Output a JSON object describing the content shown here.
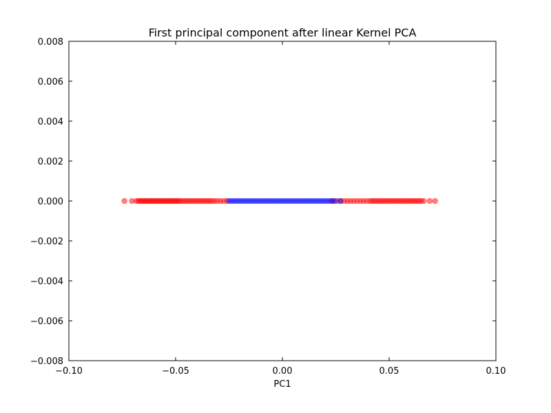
{
  "chart_data": {
    "type": "scatter",
    "title": "First principal component after linear Kernel PCA",
    "xlabel": "PC1",
    "ylabel": "",
    "xlim": [
      -0.1,
      0.1
    ],
    "ylim": [
      -0.008,
      0.008
    ],
    "grid": false,
    "legend": "none",
    "x_ticks": [
      -0.1,
      -0.05,
      0.0,
      0.05,
      0.1
    ],
    "x_tick_labels": [
      "−0.10",
      "−0.05",
      "0.00",
      "0.05",
      "0.10"
    ],
    "y_ticks": [
      0.008,
      0.006,
      0.004,
      0.002,
      0.0,
      -0.002,
      -0.004,
      -0.006,
      -0.008
    ],
    "y_tick_labels": [
      "0.008",
      "0.006",
      "0.004",
      "0.002",
      "0.000",
      "−0.002",
      "−0.004",
      "−0.006",
      "−0.008"
    ],
    "series": [
      {
        "color": "#ff0000",
        "alpha": 0.5,
        "y": 0.0,
        "x": [
          -0.074,
          -0.0705,
          -0.0685,
          -0.0675,
          -0.0668,
          -0.066,
          -0.0652,
          -0.0645,
          -0.0638,
          -0.063,
          -0.0622,
          -0.0615,
          -0.0608,
          -0.06,
          -0.0592,
          -0.0585,
          -0.0578,
          -0.057,
          -0.0562,
          -0.0555,
          -0.0548,
          -0.054,
          -0.0532,
          -0.0525,
          -0.0518,
          -0.051,
          -0.0502,
          -0.0495,
          -0.0488,
          -0.048,
          -0.047,
          -0.046,
          -0.045,
          -0.044,
          -0.043,
          -0.042,
          -0.041,
          -0.04,
          -0.039,
          -0.038,
          -0.037,
          -0.036,
          -0.035,
          -0.034,
          -0.033,
          -0.0318,
          -0.0305,
          -0.029,
          -0.0275,
          -0.026,
          0.0235,
          0.0255,
          0.0275,
          0.029,
          0.0305,
          0.032,
          0.0335,
          0.035,
          0.0365,
          0.038,
          0.0395,
          0.041,
          0.042,
          0.043,
          0.044,
          0.045,
          0.046,
          0.047,
          0.048,
          0.049,
          0.05,
          0.051,
          0.052,
          0.053,
          0.054,
          0.055,
          0.056,
          0.057,
          0.058,
          0.059,
          0.06,
          0.061,
          0.062,
          0.063,
          0.064,
          0.065,
          0.0662,
          0.069,
          0.0715
        ]
      },
      {
        "color": "#0000ff",
        "alpha": 0.5,
        "y": 0.0,
        "x": [
          -0.025,
          -0.0238,
          -0.0226,
          -0.0214,
          -0.0202,
          -0.019,
          -0.0178,
          -0.0166,
          -0.0154,
          -0.0142,
          -0.013,
          -0.0118,
          -0.0106,
          -0.0094,
          -0.0082,
          -0.007,
          -0.0058,
          -0.0046,
          -0.0034,
          -0.0022,
          -0.001,
          0.0002,
          0.0014,
          0.0026,
          0.0038,
          0.005,
          0.0062,
          0.0074,
          0.0086,
          0.0098,
          0.011,
          0.0122,
          0.0134,
          0.0146,
          0.0158,
          0.017,
          0.0182,
          0.0194,
          0.0206,
          0.0218,
          0.023,
          0.0245,
          0.027
        ]
      }
    ]
  }
}
